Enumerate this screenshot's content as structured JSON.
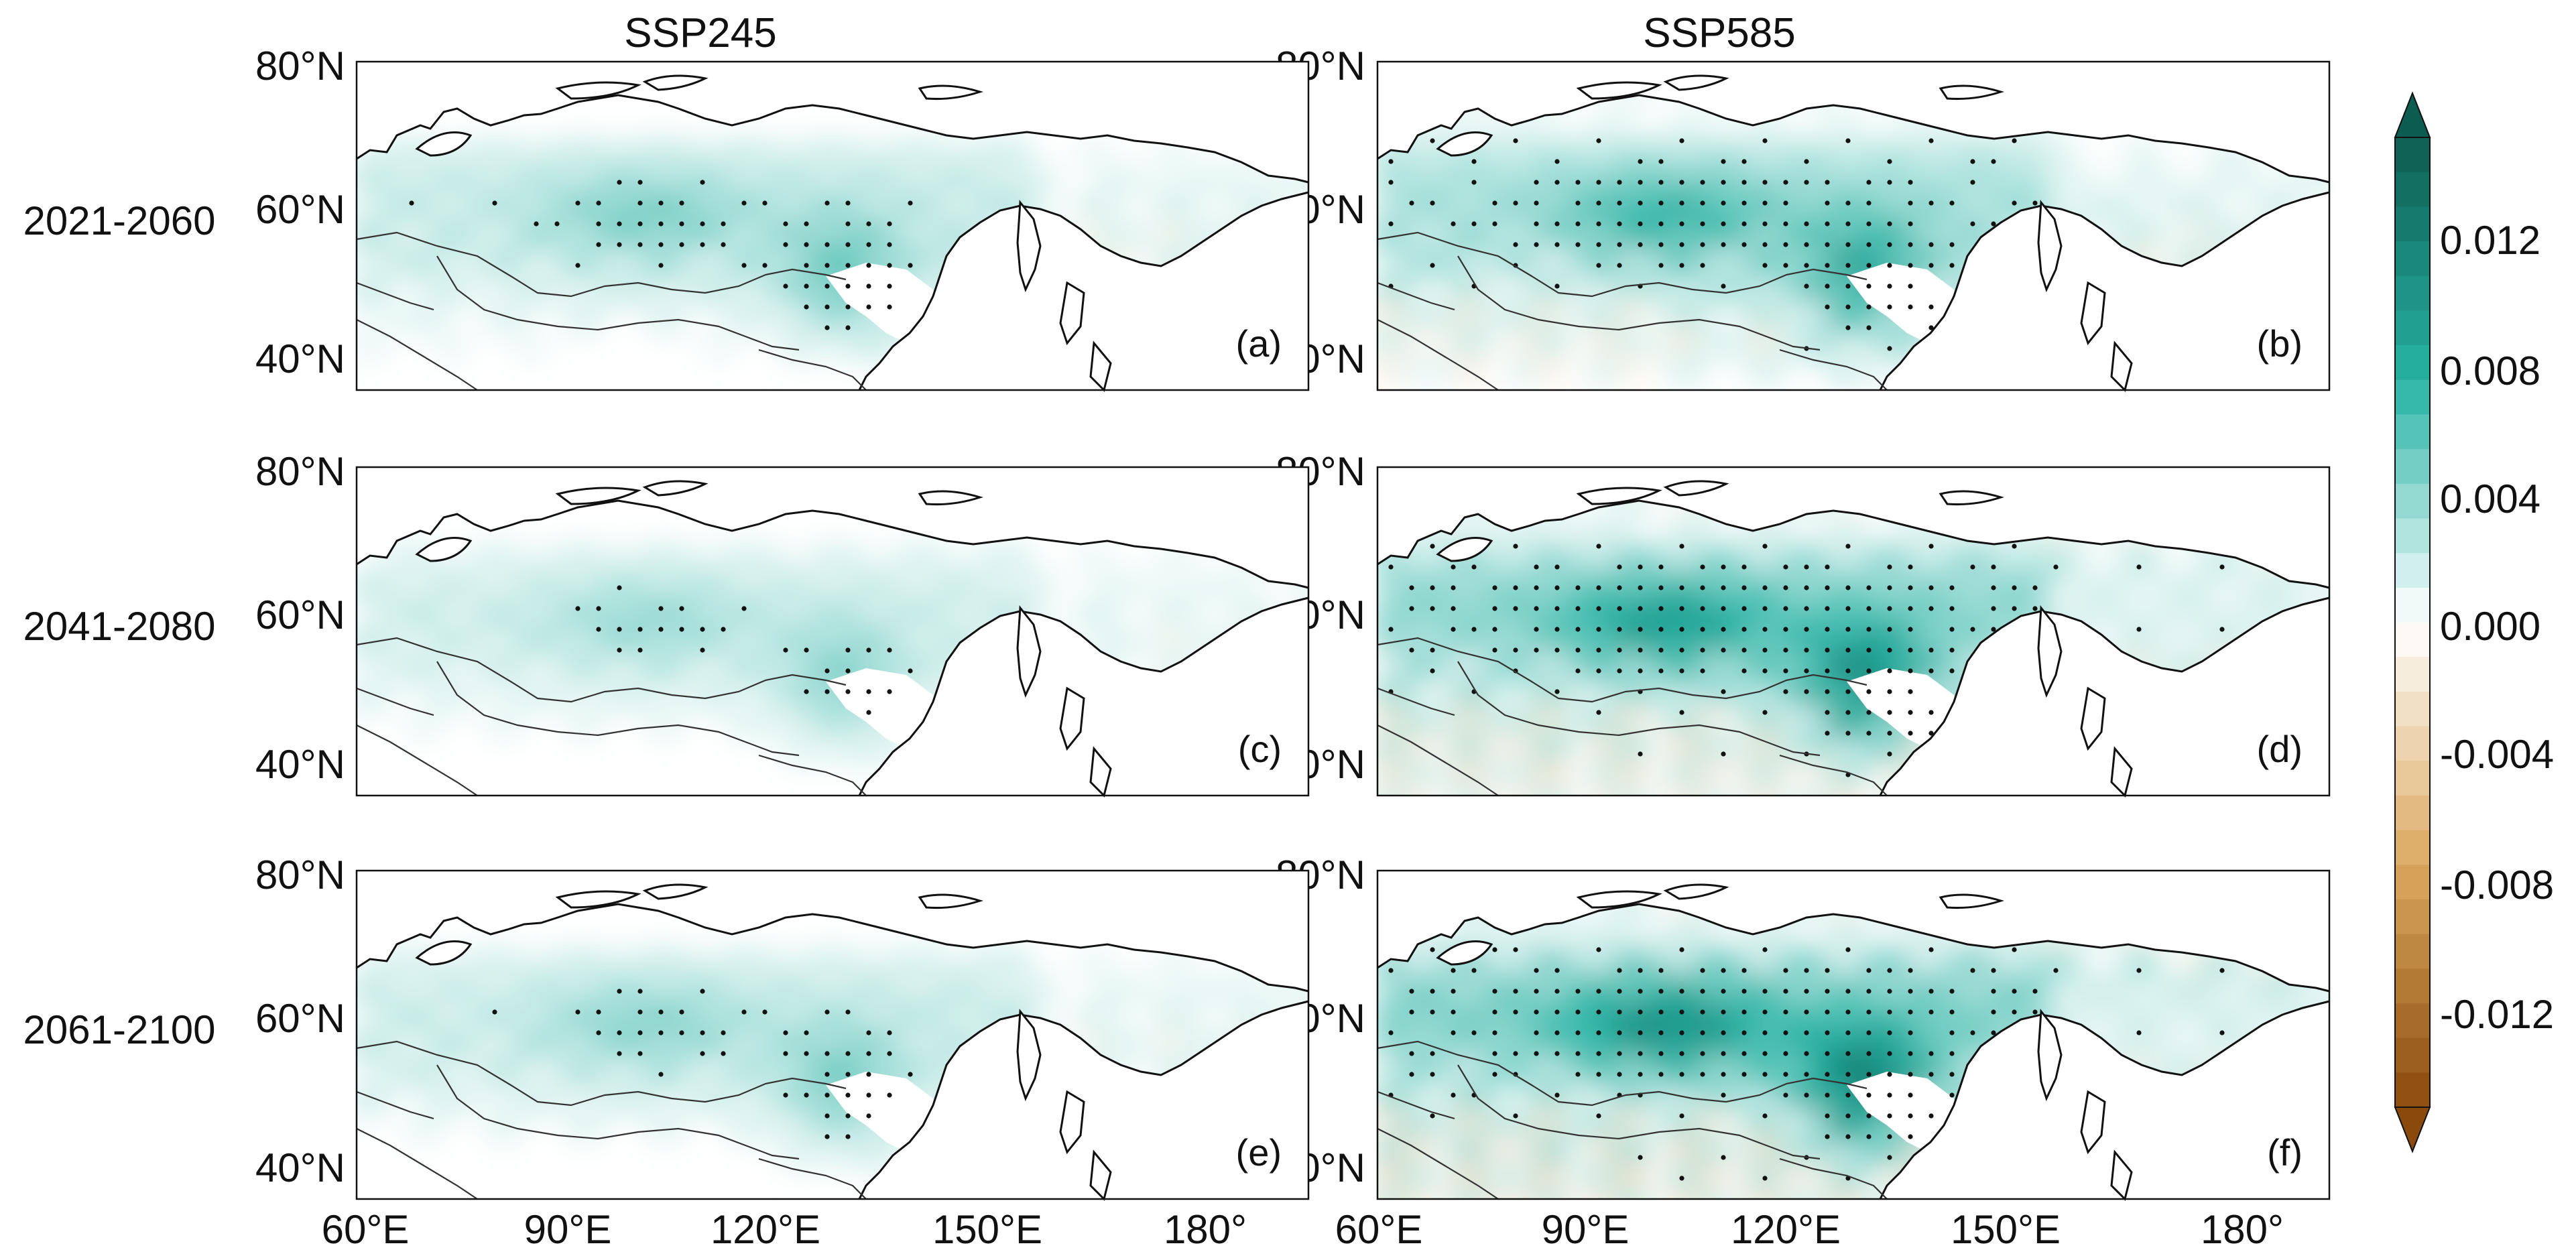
{
  "chart_data": {
    "type": "heatmap",
    "column_titles": [
      "SSP245",
      "SSP585"
    ],
    "row_labels": [
      "2021-2060",
      "2041-2080",
      "2061-2100"
    ],
    "x_ticks": [
      "60°E",
      "90°E",
      "120°E",
      "150°E",
      "180°"
    ],
    "y_ticks": [
      "80°N",
      "60°N",
      "40°N"
    ],
    "x_range_deg": [
      60,
      190
    ],
    "y_range_deg": [
      35,
      80
    ],
    "stippling": "black dots mark statistically significant grid cells",
    "panels": [
      {
        "label": "(a)",
        "scenario": "SSP245",
        "period": "2021-2060",
        "intensity": 0.45
      },
      {
        "label": "(b)",
        "scenario": "SSP585",
        "period": "2021-2060",
        "intensity": 0.7
      },
      {
        "label": "(c)",
        "scenario": "SSP245",
        "period": "2041-2080",
        "intensity": 0.35
      },
      {
        "label": "(d)",
        "scenario": "SSP585",
        "period": "2041-2080",
        "intensity": 0.9
      },
      {
        "label": "(e)",
        "scenario": "SSP245",
        "period": "2061-2100",
        "intensity": 0.4
      },
      {
        "label": "(f)",
        "scenario": "SSP585",
        "period": "2061-2100",
        "intensity": 1.0
      }
    ],
    "colorbar": {
      "min": -0.014,
      "max": 0.014,
      "levels": 28,
      "extend": "both",
      "tick_labels": [
        "0.012",
        "0.008",
        "0.004",
        "0.000",
        "-0.004",
        "-0.008",
        "-0.012"
      ],
      "tick_values": [
        0.012,
        0.008,
        0.004,
        0.0,
        -0.004,
        -0.008,
        -0.012
      ],
      "positive_color": "#0d5c50",
      "mid_positive_color": "#27b3a4",
      "zero_color": "#ffffff",
      "negative_color": "#8a4a0c",
      "mid_negative_color": "#dba960"
    }
  }
}
